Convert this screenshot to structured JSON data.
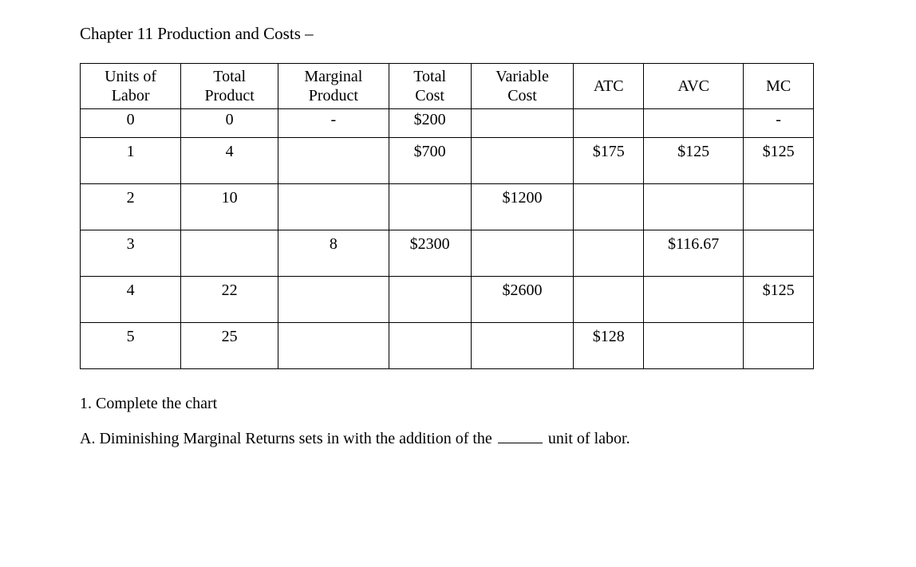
{
  "title": "Chapter 11 Production and Costs –",
  "table": {
    "columns": [
      "Units of\nLabor",
      "Total\nProduct",
      "Marginal\nProduct",
      "Total\nCost",
      "Variable\nCost",
      "ATC",
      "AVC",
      "MC"
    ],
    "rows": [
      [
        "0",
        "0",
        "-",
        "$200",
        "",
        "",
        "",
        "-"
      ],
      [
        "1",
        "4",
        "",
        "$700",
        "",
        "$175",
        "$125",
        "$125"
      ],
      [
        "2",
        "10",
        "",
        "",
        "$1200",
        "",
        "",
        ""
      ],
      [
        "3",
        "",
        "8",
        "$2300",
        "",
        "",
        "$116.67",
        ""
      ],
      [
        "4",
        "22",
        "",
        "",
        "$2600",
        "",
        "",
        "$125"
      ],
      [
        "5",
        "25",
        "",
        "",
        "",
        "$128",
        "",
        ""
      ]
    ],
    "border_color": "#000000",
    "background_color": "#ffffff",
    "text_color": "#000000",
    "header_fontsize": 20,
    "cell_fontsize": 20
  },
  "questions": {
    "q1": "1. Complete the chart",
    "qA_before": "A. Diminishing Marginal Returns sets in with the addition of the ",
    "qA_after": " unit of labor."
  }
}
